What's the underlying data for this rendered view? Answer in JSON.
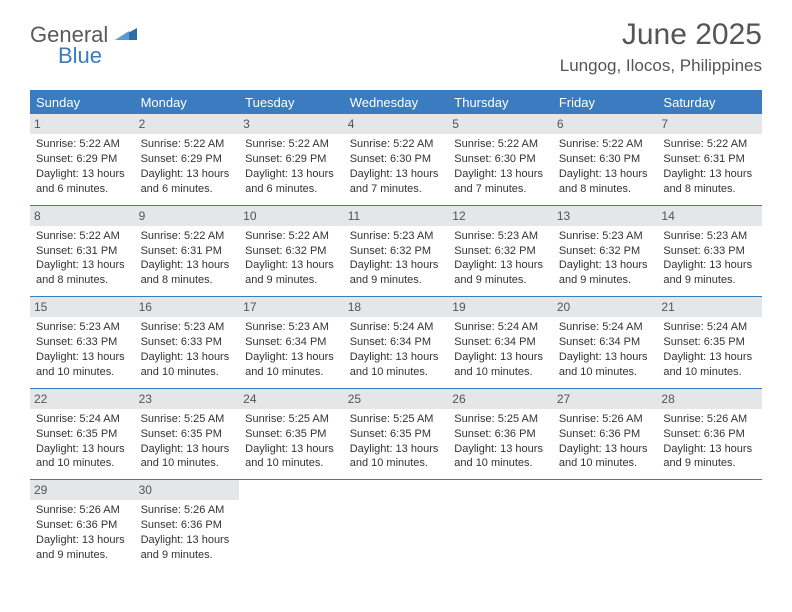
{
  "brand": {
    "text1": "General",
    "text2": "Blue",
    "color_gray": "#5a5a5a",
    "color_blue": "#3b7bbf"
  },
  "header": {
    "month_title": "June 2025",
    "location": "Lungog, Ilocos, Philippines"
  },
  "colors": {
    "header_bg": "#3b7bbf",
    "header_text": "#ffffff",
    "daynum_bg": "#e4e6e8",
    "border": "#3b7bbf",
    "text": "#333333",
    "bg": "#ffffff"
  },
  "day_names": [
    "Sunday",
    "Monday",
    "Tuesday",
    "Wednesday",
    "Thursday",
    "Friday",
    "Saturday"
  ],
  "weeks": [
    [
      {
        "n": "1",
        "sr": "Sunrise: 5:22 AM",
        "ss": "Sunset: 6:29 PM",
        "d1": "Daylight: 13 hours",
        "d2": "and 6 minutes."
      },
      {
        "n": "2",
        "sr": "Sunrise: 5:22 AM",
        "ss": "Sunset: 6:29 PM",
        "d1": "Daylight: 13 hours",
        "d2": "and 6 minutes."
      },
      {
        "n": "3",
        "sr": "Sunrise: 5:22 AM",
        "ss": "Sunset: 6:29 PM",
        "d1": "Daylight: 13 hours",
        "d2": "and 6 minutes."
      },
      {
        "n": "4",
        "sr": "Sunrise: 5:22 AM",
        "ss": "Sunset: 6:30 PM",
        "d1": "Daylight: 13 hours",
        "d2": "and 7 minutes."
      },
      {
        "n": "5",
        "sr": "Sunrise: 5:22 AM",
        "ss": "Sunset: 6:30 PM",
        "d1": "Daylight: 13 hours",
        "d2": "and 7 minutes."
      },
      {
        "n": "6",
        "sr": "Sunrise: 5:22 AM",
        "ss": "Sunset: 6:30 PM",
        "d1": "Daylight: 13 hours",
        "d2": "and 8 minutes."
      },
      {
        "n": "7",
        "sr": "Sunrise: 5:22 AM",
        "ss": "Sunset: 6:31 PM",
        "d1": "Daylight: 13 hours",
        "d2": "and 8 minutes."
      }
    ],
    [
      {
        "n": "8",
        "sr": "Sunrise: 5:22 AM",
        "ss": "Sunset: 6:31 PM",
        "d1": "Daylight: 13 hours",
        "d2": "and 8 minutes."
      },
      {
        "n": "9",
        "sr": "Sunrise: 5:22 AM",
        "ss": "Sunset: 6:31 PM",
        "d1": "Daylight: 13 hours",
        "d2": "and 8 minutes."
      },
      {
        "n": "10",
        "sr": "Sunrise: 5:22 AM",
        "ss": "Sunset: 6:32 PM",
        "d1": "Daylight: 13 hours",
        "d2": "and 9 minutes."
      },
      {
        "n": "11",
        "sr": "Sunrise: 5:23 AM",
        "ss": "Sunset: 6:32 PM",
        "d1": "Daylight: 13 hours",
        "d2": "and 9 minutes."
      },
      {
        "n": "12",
        "sr": "Sunrise: 5:23 AM",
        "ss": "Sunset: 6:32 PM",
        "d1": "Daylight: 13 hours",
        "d2": "and 9 minutes."
      },
      {
        "n": "13",
        "sr": "Sunrise: 5:23 AM",
        "ss": "Sunset: 6:32 PM",
        "d1": "Daylight: 13 hours",
        "d2": "and 9 minutes."
      },
      {
        "n": "14",
        "sr": "Sunrise: 5:23 AM",
        "ss": "Sunset: 6:33 PM",
        "d1": "Daylight: 13 hours",
        "d2": "and 9 minutes."
      }
    ],
    [
      {
        "n": "15",
        "sr": "Sunrise: 5:23 AM",
        "ss": "Sunset: 6:33 PM",
        "d1": "Daylight: 13 hours",
        "d2": "and 10 minutes."
      },
      {
        "n": "16",
        "sr": "Sunrise: 5:23 AM",
        "ss": "Sunset: 6:33 PM",
        "d1": "Daylight: 13 hours",
        "d2": "and 10 minutes."
      },
      {
        "n": "17",
        "sr": "Sunrise: 5:23 AM",
        "ss": "Sunset: 6:34 PM",
        "d1": "Daylight: 13 hours",
        "d2": "and 10 minutes."
      },
      {
        "n": "18",
        "sr": "Sunrise: 5:24 AM",
        "ss": "Sunset: 6:34 PM",
        "d1": "Daylight: 13 hours",
        "d2": "and 10 minutes."
      },
      {
        "n": "19",
        "sr": "Sunrise: 5:24 AM",
        "ss": "Sunset: 6:34 PM",
        "d1": "Daylight: 13 hours",
        "d2": "and 10 minutes."
      },
      {
        "n": "20",
        "sr": "Sunrise: 5:24 AM",
        "ss": "Sunset: 6:34 PM",
        "d1": "Daylight: 13 hours",
        "d2": "and 10 minutes."
      },
      {
        "n": "21",
        "sr": "Sunrise: 5:24 AM",
        "ss": "Sunset: 6:35 PM",
        "d1": "Daylight: 13 hours",
        "d2": "and 10 minutes."
      }
    ],
    [
      {
        "n": "22",
        "sr": "Sunrise: 5:24 AM",
        "ss": "Sunset: 6:35 PM",
        "d1": "Daylight: 13 hours",
        "d2": "and 10 minutes."
      },
      {
        "n": "23",
        "sr": "Sunrise: 5:25 AM",
        "ss": "Sunset: 6:35 PM",
        "d1": "Daylight: 13 hours",
        "d2": "and 10 minutes."
      },
      {
        "n": "24",
        "sr": "Sunrise: 5:25 AM",
        "ss": "Sunset: 6:35 PM",
        "d1": "Daylight: 13 hours",
        "d2": "and 10 minutes."
      },
      {
        "n": "25",
        "sr": "Sunrise: 5:25 AM",
        "ss": "Sunset: 6:35 PM",
        "d1": "Daylight: 13 hours",
        "d2": "and 10 minutes."
      },
      {
        "n": "26",
        "sr": "Sunrise: 5:25 AM",
        "ss": "Sunset: 6:36 PM",
        "d1": "Daylight: 13 hours",
        "d2": "and 10 minutes."
      },
      {
        "n": "27",
        "sr": "Sunrise: 5:26 AM",
        "ss": "Sunset: 6:36 PM",
        "d1": "Daylight: 13 hours",
        "d2": "and 10 minutes."
      },
      {
        "n": "28",
        "sr": "Sunrise: 5:26 AM",
        "ss": "Sunset: 6:36 PM",
        "d1": "Daylight: 13 hours",
        "d2": "and 9 minutes."
      }
    ],
    [
      {
        "n": "29",
        "sr": "Sunrise: 5:26 AM",
        "ss": "Sunset: 6:36 PM",
        "d1": "Daylight: 13 hours",
        "d2": "and 9 minutes."
      },
      {
        "n": "30",
        "sr": "Sunrise: 5:26 AM",
        "ss": "Sunset: 6:36 PM",
        "d1": "Daylight: 13 hours",
        "d2": "and 9 minutes."
      },
      null,
      null,
      null,
      null,
      null
    ]
  ]
}
